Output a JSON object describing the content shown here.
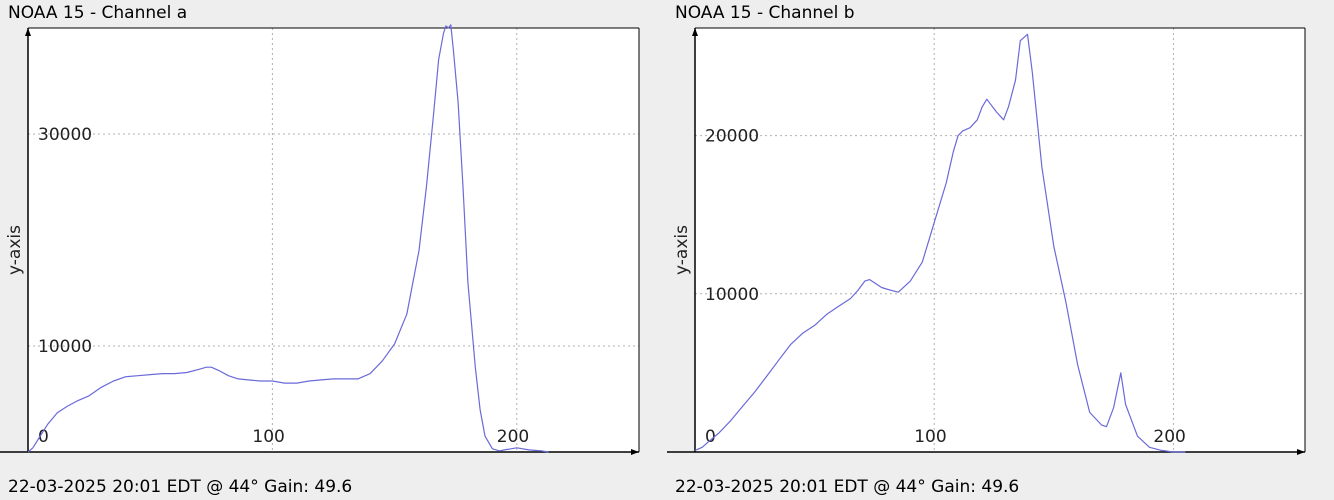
{
  "chart_data": [
    {
      "type": "line",
      "title": "NOAA 15 - Channel a",
      "footer": "22-03-2025 20:01 EDT @ 44° Gain: 49.6",
      "xlabel": "",
      "ylabel": "y-axis",
      "xlim": [
        0,
        250
      ],
      "ylim": [
        0,
        40000
      ],
      "x_ticks": [
        0,
        100,
        200
      ],
      "y_ticks": [
        10000,
        30000
      ],
      "grid": true,
      "line_color": "#6a6ad8",
      "series": [
        {
          "x": [
            0,
            2,
            5,
            8,
            12,
            16,
            20,
            25,
            30,
            35,
            40,
            45,
            50,
            55,
            60,
            65,
            70,
            73,
            75,
            78,
            82,
            86,
            90,
            95,
            100,
            105,
            110,
            115,
            120,
            125,
            130,
            135,
            140,
            145,
            150,
            155,
            160,
            163,
            166,
            168,
            170,
            171,
            172,
            173,
            174,
            176,
            178,
            180,
            183,
            185,
            187,
            190,
            193,
            195,
            200,
            205,
            210,
            213
          ],
          "y": [
            0,
            400,
            1500,
            2600,
            3700,
            4300,
            4800,
            5300,
            6100,
            6700,
            7100,
            7200,
            7300,
            7400,
            7400,
            7500,
            7800,
            8000,
            8000,
            7700,
            7200,
            6900,
            6800,
            6700,
            6700,
            6500,
            6500,
            6700,
            6800,
            6900,
            6900,
            6900,
            7400,
            8600,
            10200,
            13000,
            19000,
            25000,
            32000,
            37000,
            39500,
            40200,
            40000,
            40300,
            38000,
            33000,
            25000,
            16000,
            8000,
            4000,
            1500,
            300,
            100,
            200,
            400,
            200,
            100,
            0
          ]
        }
      ]
    },
    {
      "type": "line",
      "title": "NOAA 15 - Channel b",
      "footer": "22-03-2025 20:01 EDT @ 44° Gain: 49.6",
      "xlabel": "",
      "ylabel": "y-axis",
      "xlim": [
        0,
        255
      ],
      "ylim": [
        0,
        26800
      ],
      "x_ticks": [
        0,
        100,
        200
      ],
      "y_ticks": [
        10000,
        20000
      ],
      "grid": true,
      "line_color": "#6a6ad8",
      "series": [
        {
          "x": [
            0,
            3,
            6,
            10,
            15,
            20,
            25,
            30,
            35,
            40,
            45,
            50,
            55,
            60,
            65,
            68,
            71,
            73,
            75,
            78,
            80,
            85,
            90,
            95,
            100,
            105,
            108,
            110,
            112,
            115,
            118,
            120,
            122,
            126,
            129,
            131,
            134,
            136,
            139,
            141,
            145,
            150,
            155,
            160,
            165,
            170,
            172,
            175,
            178,
            180,
            185,
            190,
            195,
            200,
            205
          ],
          "y": [
            100,
            300,
            700,
            1200,
            2000,
            2900,
            3800,
            4800,
            5800,
            6800,
            7500,
            8000,
            8700,
            9200,
            9700,
            10200,
            10800,
            10900,
            10700,
            10400,
            10300,
            10100,
            10800,
            12000,
            14500,
            17000,
            19000,
            20000,
            20300,
            20500,
            21000,
            21800,
            22300,
            21500,
            21000,
            21800,
            23500,
            26000,
            26400,
            24000,
            18000,
            13000,
            9500,
            5500,
            2500,
            1700,
            1600,
            2800,
            5000,
            3000,
            1000,
            300,
            100,
            0,
            0
          ]
        }
      ]
    }
  ]
}
